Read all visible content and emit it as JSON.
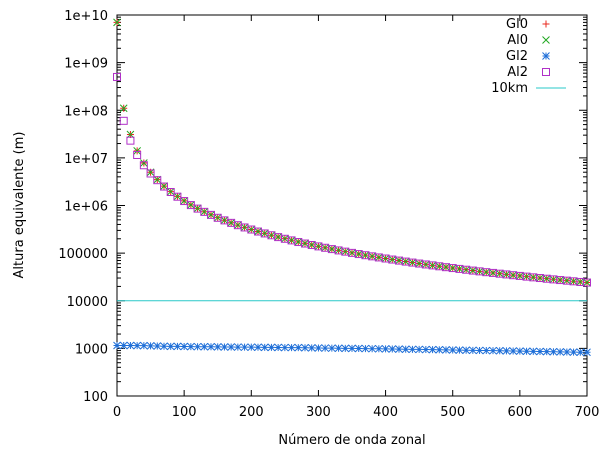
{
  "chart_data": {
    "type": "scatter",
    "title": "",
    "xlabel": "Número de onda zonal",
    "ylabel": "Altura equivalente (m)",
    "xlim": [
      0,
      700
    ],
    "ylim": [
      100,
      10000000000
    ],
    "yscale": "log",
    "grid": false,
    "legend_position": "top-right",
    "x_ticks": [
      0,
      100,
      200,
      300,
      400,
      500,
      600,
      700
    ],
    "x_tick_labels": [
      "0",
      "100",
      "200",
      "300",
      "400",
      "500",
      "600",
      "700"
    ],
    "y_ticks": [
      100,
      1000,
      10000,
      100000,
      1000000,
      10000000,
      100000000,
      1000000000,
      10000000000
    ],
    "y_tick_labels": [
      "100",
      "1000",
      "10000",
      "100000",
      "1e+06",
      "1e+07",
      "1e+08",
      "1e+09",
      "1e+10"
    ],
    "series": [
      {
        "name": "Gl0",
        "marker": "plus",
        "color": "#e8281e",
        "x": [
          0,
          10,
          20,
          30,
          40,
          50,
          60,
          70,
          80,
          90,
          100,
          110,
          120,
          130,
          140,
          150,
          160,
          170,
          180,
          190,
          200,
          210,
          220,
          230,
          240,
          250,
          260,
          270,
          280,
          290,
          300,
          310,
          320,
          330,
          340,
          350,
          360,
          370,
          380,
          390,
          400,
          410,
          420,
          430,
          440,
          450,
          460,
          470,
          480,
          490,
          500,
          510,
          520,
          530,
          540,
          550,
          560,
          570,
          580,
          590,
          600,
          610,
          620,
          630,
          640,
          650,
          660,
          670,
          680,
          690,
          700
        ],
        "y": [
          7000000000,
          110000000,
          31000000,
          14000000,
          7800000,
          5000000,
          3500000,
          2550000,
          1950000,
          1550000,
          1250000,
          1030000,
          870000,
          740000,
          640000,
          555000,
          490000,
          435000,
          388000,
          348000,
          314000,
          285000,
          260000,
          238000,
          218000,
          201000,
          186000,
          172000,
          160000,
          149000,
          139000,
          130000,
          122000,
          114500,
          107800,
          101600,
          95900,
          90700,
          85900,
          81400,
          77300,
          73500,
          69900,
          66600,
          63500,
          60600,
          57900,
          55400,
          53000,
          50800,
          48700,
          46700,
          44900,
          43100,
          41500,
          39900,
          38500,
          37100,
          35800,
          34500,
          33300,
          32200,
          31100,
          30100,
          29100,
          28200,
          27300,
          26500,
          25700,
          24900,
          24200
        ]
      },
      {
        "name": "Al0",
        "marker": "cross",
        "color": "#22a822",
        "x": [
          0,
          10,
          20,
          30,
          40,
          50,
          60,
          70,
          80,
          90,
          100,
          110,
          120,
          130,
          140,
          150,
          160,
          170,
          180,
          190,
          200,
          210,
          220,
          230,
          240,
          250,
          260,
          270,
          280,
          290,
          300,
          310,
          320,
          330,
          340,
          350,
          360,
          370,
          380,
          390,
          400,
          410,
          420,
          430,
          440,
          450,
          460,
          470,
          480,
          490,
          500,
          510,
          520,
          530,
          540,
          550,
          560,
          570,
          580,
          590,
          600,
          610,
          620,
          630,
          640,
          650,
          660,
          670,
          680,
          690,
          700
        ],
        "y": [
          7000000000,
          110000000,
          31000000,
          14000000,
          7800000,
          5000000,
          3500000,
          2550000,
          1950000,
          1550000,
          1250000,
          1030000,
          870000,
          740000,
          640000,
          555000,
          490000,
          435000,
          388000,
          348000,
          314000,
          285000,
          260000,
          238000,
          218000,
          201000,
          186000,
          172000,
          160000,
          149000,
          139000,
          130000,
          122000,
          114500,
          107800,
          101600,
          95900,
          90700,
          85900,
          81400,
          77300,
          73500,
          69900,
          66600,
          63500,
          60600,
          57900,
          55400,
          53000,
          50800,
          48700,
          46700,
          44900,
          43100,
          41500,
          39900,
          38500,
          37100,
          35800,
          34500,
          33300,
          32200,
          31100,
          30100,
          29100,
          28200,
          27300,
          26500,
          25700,
          24900,
          24200
        ]
      },
      {
        "name": "Gl2",
        "marker": "star",
        "color": "#1f6fd8",
        "x": [
          0,
          10,
          20,
          30,
          40,
          50,
          60,
          70,
          80,
          90,
          100,
          110,
          120,
          130,
          140,
          150,
          160,
          170,
          180,
          190,
          200,
          210,
          220,
          230,
          240,
          250,
          260,
          270,
          280,
          290,
          300,
          310,
          320,
          330,
          340,
          350,
          360,
          370,
          380,
          390,
          400,
          410,
          420,
          430,
          440,
          450,
          460,
          470,
          480,
          490,
          500,
          510,
          520,
          530,
          540,
          550,
          560,
          570,
          580,
          590,
          600,
          610,
          620,
          630,
          640,
          650,
          660,
          670,
          680,
          690,
          700
        ],
        "y": [
          1150,
          1150,
          1150,
          1140,
          1140,
          1130,
          1120,
          1110,
          1100,
          1100,
          1095,
          1090,
          1085,
          1080,
          1080,
          1075,
          1070,
          1070,
          1065,
          1060,
          1060,
          1055,
          1050,
          1050,
          1045,
          1040,
          1040,
          1035,
          1030,
          1025,
          1020,
          1015,
          1010,
          1005,
          1000,
          1000,
          995,
          990,
          985,
          980,
          975,
          970,
          965,
          960,
          955,
          950,
          945,
          940,
          935,
          930,
          925,
          920,
          915,
          910,
          905,
          900,
          895,
          890,
          885,
          880,
          875,
          870,
          865,
          860,
          855,
          850,
          845,
          840,
          835,
          830,
          830
        ]
      },
      {
        "name": "Al2",
        "marker": "square",
        "color": "#b030c8",
        "x": [
          0,
          10,
          20,
          30,
          40,
          50,
          60,
          70,
          80,
          90,
          100,
          110,
          120,
          130,
          140,
          150,
          160,
          170,
          180,
          190,
          200,
          210,
          220,
          230,
          240,
          250,
          260,
          270,
          280,
          290,
          300,
          310,
          320,
          330,
          340,
          350,
          360,
          370,
          380,
          390,
          400,
          410,
          420,
          430,
          440,
          450,
          460,
          470,
          480,
          490,
          500,
          510,
          520,
          530,
          540,
          550,
          560,
          570,
          580,
          590,
          600,
          610,
          620,
          630,
          640,
          650,
          660,
          670,
          680,
          690,
          700
        ],
        "y": [
          500000000,
          60000000,
          23000000,
          11500000,
          7000000,
          4700000,
          3400000,
          2500000,
          1920000,
          1530000,
          1240000,
          1020000,
          860000,
          735000,
          635000,
          552000,
          487000,
          432000,
          386000,
          346000,
          313000,
          284000,
          259000,
          237000,
          217000,
          200000,
          185000,
          171000,
          159000,
          148000,
          138500,
          129500,
          121500,
          114000,
          107400,
          101200,
          95600,
          90400,
          85600,
          81200,
          77100,
          73300,
          69700,
          66400,
          63300,
          60400,
          57800,
          55300,
          52900,
          50700,
          48600,
          46600,
          44800,
          43000,
          41400,
          39800,
          38400,
          37000,
          35700,
          34400,
          33200,
          32100,
          31000,
          30000,
          29000,
          28100,
          27200,
          26400,
          25600,
          24800,
          24100
        ]
      },
      {
        "name": "10km",
        "marker": "line",
        "color": "#2ac8c8",
        "x": [
          0,
          700
        ],
        "y": [
          10000,
          10000
        ]
      }
    ]
  }
}
